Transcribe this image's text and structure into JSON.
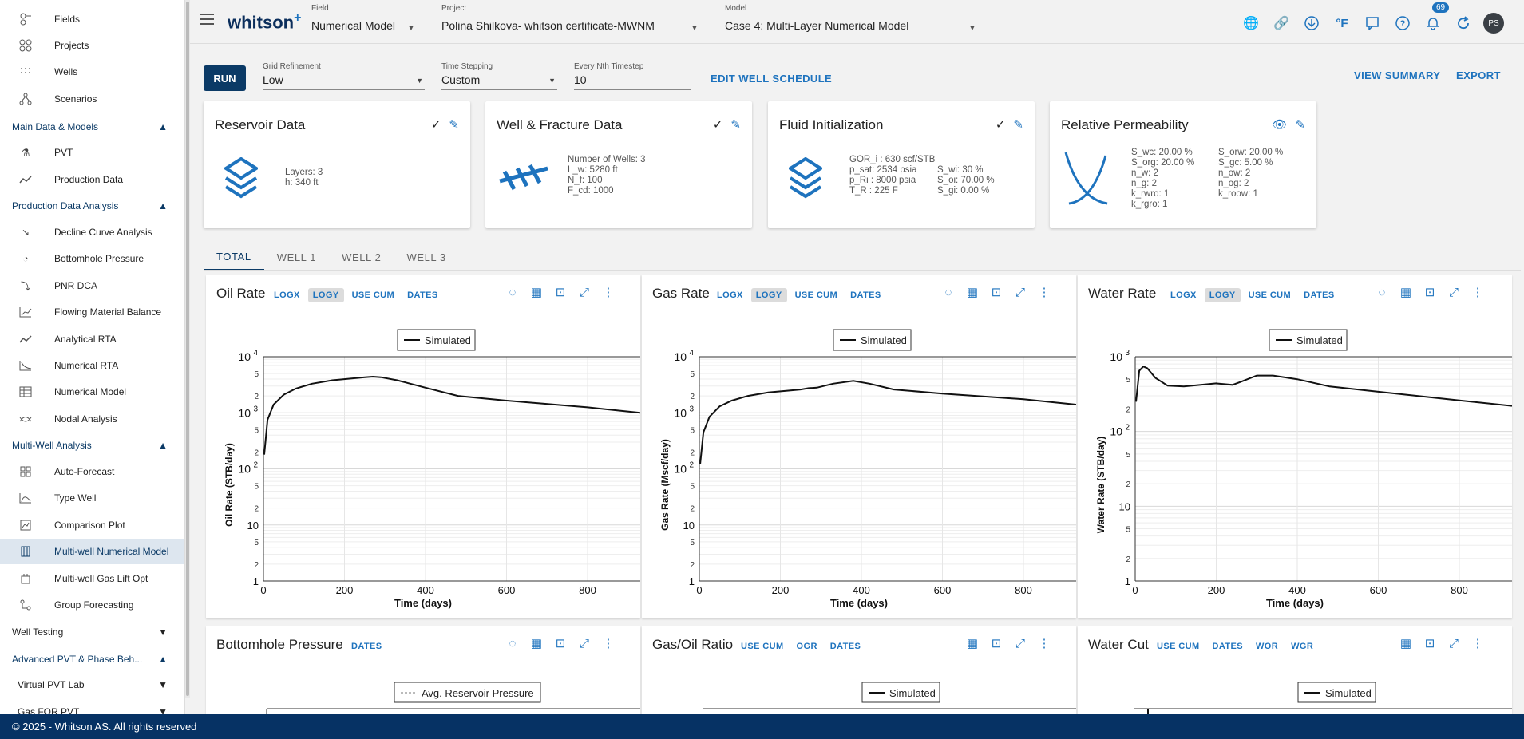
{
  "sidebar": {
    "top_items": [
      {
        "label": "Fields",
        "icon": "fields-icon"
      },
      {
        "label": "Projects",
        "icon": "projects-icon"
      },
      {
        "label": "Wells",
        "icon": "wells-icon"
      },
      {
        "label": "Scenarios",
        "icon": "scenarios-icon"
      }
    ],
    "sections": [
      {
        "label": "Main Data & Models",
        "items": [
          {
            "label": "PVT"
          },
          {
            "label": "Production Data"
          }
        ]
      },
      {
        "label": "Production Data Analysis",
        "items": [
          {
            "label": "Decline Curve Analysis"
          },
          {
            "label": "Bottomhole Pressure"
          },
          {
            "label": "PNR DCA"
          },
          {
            "label": "Flowing Material Balance"
          },
          {
            "label": "Analytical RTA"
          },
          {
            "label": "Numerical RTA"
          },
          {
            "label": "Numerical Model"
          },
          {
            "label": "Nodal Analysis"
          }
        ]
      },
      {
        "label": "Multi-Well Analysis",
        "items": [
          {
            "label": "Auto-Forecast"
          },
          {
            "label": "Type Well"
          },
          {
            "label": "Comparison Plot"
          },
          {
            "label": "Multi-well Numerical Model"
          },
          {
            "label": "Multi-well Gas Lift Opt"
          },
          {
            "label": "Group Forecasting"
          }
        ]
      },
      {
        "label": "Well Testing"
      },
      {
        "label": "Advanced PVT & Phase Beh..."
      }
    ],
    "sub_items": [
      {
        "label": "Virtual PVT Lab"
      },
      {
        "label": "Gas FOR PVT"
      }
    ]
  },
  "footer": {
    "text": "© 2025 - Whitson AS. All rights reserved"
  },
  "header": {
    "logo": "whitson",
    "logo_plus": "+",
    "field": {
      "caption": "Field",
      "value": "Numerical Model"
    },
    "project": {
      "caption": "Project",
      "value": "Polina Shilkova- whitson certificate-MWNM"
    },
    "model": {
      "caption": "Model",
      "value": "Case 4: Multi-Layer Numerical Model"
    },
    "units_label": "°F",
    "notifications": "69",
    "avatar": "PS"
  },
  "controls": {
    "run": "RUN",
    "grid": {
      "caption": "Grid Refinement",
      "value": "Low"
    },
    "timestep": {
      "caption": "Time Stepping",
      "value": "Custom"
    },
    "nth": {
      "caption": "Every Nth Timestep",
      "value": "10"
    },
    "edit_schedule": "EDIT WELL SCHEDULE",
    "view_summary": "VIEW SUMMARY",
    "export": "EXPORT"
  },
  "cards": {
    "reservoir": {
      "title": "Reservoir Data",
      "layers": "Layers:  3",
      "h": "h:  340 ft"
    },
    "well": {
      "title": "Well & Fracture Data",
      "nwells": "Number of Wells:  3",
      "lw": "L_w:  5280 ft",
      "nf": "N_f:  100",
      "fcd": "F_cd:  1000"
    },
    "fluid": {
      "title": "Fluid Initialization",
      "gor": "GOR_i :  630 scf/STB",
      "psat": "p_sat:  2534 psia",
      "pri": "p_Ri :  8000 psia",
      "tr": "T_R :  225 F",
      "swi": "S_wi:  30 %",
      "soi": "S_oi:  70.00 %",
      "sgi": "S_gi:  0.00 %"
    },
    "relperm": {
      "title": "Relative Permeability",
      "left": [
        "S_wc:  20.00 %",
        "S_org:  20.00 %",
        "n_w:  2",
        "n_g:  2",
        "k_rwro:  1",
        "k_rgro:  1"
      ],
      "right": [
        "S_orw:  20.00 %",
        "S_gc:  5.00 %",
        "n_ow:  2",
        "n_og:  2",
        "k_roow:  1"
      ]
    }
  },
  "tabs": [
    "TOTAL",
    "WELL 1",
    "WELL 2",
    "WELL 3"
  ],
  "panel_options": {
    "logx": "LOGX",
    "logy": "LOGY",
    "usecum": "USE CUM",
    "dates": "DATES",
    "ogr": "OGR",
    "wor": "WOR",
    "wgr": "WGR"
  },
  "panels": {
    "oil": {
      "title": "Oil Rate"
    },
    "gas": {
      "title": "Gas Rate"
    },
    "water": {
      "title": "Water Rate"
    },
    "bhp": {
      "title": "Bottomhole Pressure"
    },
    "gor": {
      "title": "Gas/Oil Ratio"
    },
    "wcut": {
      "title": "Water Cut"
    }
  },
  "chart_data": [
    {
      "type": "line",
      "title": "Oil Rate",
      "xlabel": "Time (days)",
      "ylabel": "Oil Rate (STB/day)",
      "yscale": "log",
      "ylim": [
        1,
        10000
      ],
      "xlim": [
        0,
        930
      ],
      "legend": "top-center",
      "series": [
        {
          "name": "Simulated",
          "x": [
            2,
            10,
            25,
            50,
            80,
            120,
            170,
            250,
            270,
            290,
            330,
            400,
            480,
            600,
            800,
            930
          ],
          "y": [
            180,
            750,
            1400,
            2100,
            2700,
            3300,
            3800,
            4300,
            4400,
            4300,
            3800,
            2800,
            2000,
            1650,
            1250,
            1000
          ]
        }
      ]
    },
    {
      "type": "line",
      "title": "Gas Rate",
      "xlabel": "Time (days)",
      "ylabel": "Gas Rate (Mscf/day)",
      "yscale": "log",
      "ylim": [
        1,
        10000
      ],
      "xlim": [
        0,
        930
      ],
      "legend": "top-center",
      "series": [
        {
          "name": "Simulated",
          "x": [
            2,
            10,
            25,
            50,
            80,
            120,
            170,
            250,
            270,
            290,
            330,
            380,
            420,
            480,
            600,
            800,
            930
          ],
          "y": [
            120,
            450,
            850,
            1300,
            1650,
            2000,
            2300,
            2600,
            2750,
            2800,
            3300,
            3700,
            3300,
            2600,
            2200,
            1750,
            1400
          ]
        }
      ]
    },
    {
      "type": "line",
      "title": "Water Rate",
      "xlabel": "Time (days)",
      "ylabel": "Water Rate (STB/day)",
      "yscale": "log",
      "ylim": [
        1,
        1000
      ],
      "xlim": [
        0,
        930
      ],
      "legend": "top-center",
      "series": [
        {
          "name": "Simulated",
          "x": [
            2,
            10,
            20,
            30,
            50,
            80,
            120,
            200,
            240,
            260,
            300,
            340,
            400,
            480,
            600,
            800,
            930
          ],
          "y": [
            250,
            650,
            740,
            700,
            520,
            410,
            400,
            440,
            420,
            460,
            560,
            560,
            500,
            400,
            340,
            260,
            220
          ]
        }
      ]
    },
    {
      "type": "line",
      "title": "Bottomhole Pressure",
      "legend": "top-center",
      "series": [
        {
          "name": "Avg. Reservoir Pressure"
        }
      ]
    },
    {
      "type": "line",
      "title": "Gas/Oil Ratio",
      "legend": "top-center",
      "series": [
        {
          "name": "Simulated"
        }
      ]
    },
    {
      "type": "line",
      "title": "Water Cut",
      "legend": "top-center",
      "series": [
        {
          "name": "Simulated"
        }
      ]
    }
  ]
}
